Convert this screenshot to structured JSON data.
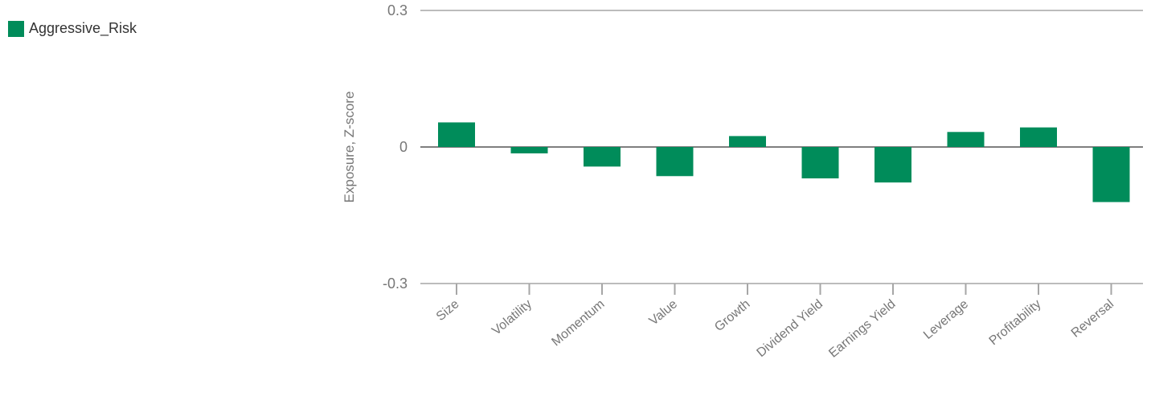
{
  "legend": {
    "label": "Aggressive_Risk",
    "color": "#008C5A"
  },
  "chart_data": {
    "type": "bar",
    "ylabel": "Exposure, Z-score",
    "xlabel": "",
    "ylim": [
      -0.3,
      0.3
    ],
    "yticks": [
      {
        "value": 0.3,
        "label": "0.3"
      },
      {
        "value": 0,
        "label": "0"
      },
      {
        "value": -0.3,
        "label": "-0.3"
      }
    ],
    "categories": [
      "Size",
      "Volatility",
      "Momentum",
      "Value",
      "Growth",
      "Dividend Yield",
      "Earnings Yield",
      "Leverage",
      "Profitability",
      "Reversal"
    ],
    "series": [
      {
        "name": "Aggressive_Risk",
        "color": "#008C5A",
        "values": [
          0.054,
          -0.014,
          -0.043,
          -0.064,
          0.024,
          -0.069,
          -0.078,
          0.033,
          0.043,
          -0.121
        ]
      }
    ],
    "grid": true,
    "legend_position": "top-left"
  }
}
